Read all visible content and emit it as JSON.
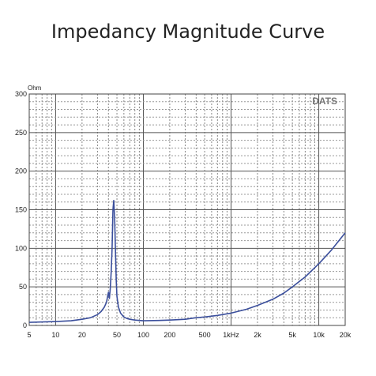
{
  "chart_data": {
    "type": "line",
    "title": "Impedancy Magnitude Curve",
    "ylabel": "Ohm",
    "watermark": "DATS",
    "x_scale": "log",
    "xlim": [
      5,
      20000
    ],
    "ylim": [
      0,
      300
    ],
    "grid": true,
    "x_tick_values": [
      5,
      10,
      20,
      50,
      100,
      200,
      500,
      1000,
      2000,
      5000,
      10000,
      20000
    ],
    "x_tick_labels": [
      "5",
      "10",
      "20",
      "50",
      "100",
      "200",
      "500",
      "1kHz",
      "2k",
      "5k",
      "10k",
      "20k"
    ],
    "y_tick_values": [
      0,
      50,
      100,
      150,
      200,
      250,
      300
    ],
    "y_tick_labels": [
      "0",
      "50",
      "100",
      "150",
      "200",
      "250",
      "300"
    ],
    "line_color": "#3b4f9c",
    "series": [
      {
        "x": [
          5,
          7,
          10,
          15,
          20,
          25,
          30,
          33,
          36,
          38,
          39,
          40,
          41,
          42,
          43,
          44,
          45,
          46,
          47,
          48,
          49,
          50,
          52,
          55,
          60,
          65,
          70,
          80,
          100,
          150,
          200,
          300,
          400,
          500,
          700,
          1000,
          1500,
          2000,
          3000,
          4000,
          5000,
          7000,
          10000,
          14000,
          20000
        ],
        "y": [
          4,
          4.5,
          5,
          6,
          8,
          10,
          14,
          18,
          24,
          30,
          37,
          43,
          35,
          48,
          70,
          100,
          150,
          162,
          140,
          100,
          60,
          38,
          24,
          16,
          11,
          9,
          8,
          7,
          6,
          6.5,
          7,
          8,
          10,
          11,
          13,
          16,
          21,
          26,
          34,
          42,
          50,
          63,
          80,
          98,
          120
        ]
      }
    ]
  }
}
